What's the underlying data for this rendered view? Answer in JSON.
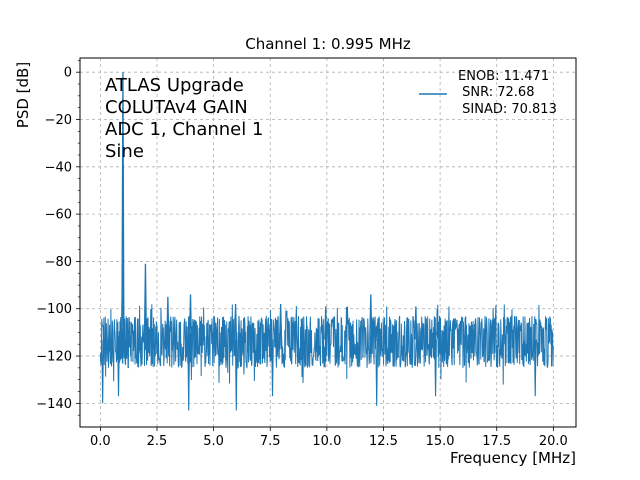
{
  "chart_data": {
    "type": "line",
    "title": "Channel 1: 0.995 MHz",
    "xlabel": "Frequency [MHz]",
    "ylabel": "PSD [dB]",
    "xlim": [
      -0.9,
      21.0
    ],
    "ylim": [
      -150,
      6
    ],
    "xticks": [
      0,
      2.5,
      5,
      7.5,
      10,
      12.5,
      15,
      17.5,
      20
    ],
    "xtick_labels": [
      "0.0",
      "2.5",
      "5.0",
      "7.5",
      "10.0",
      "12.5",
      "15.0",
      "17.5",
      "20.0"
    ],
    "yticks": [
      0,
      -20,
      -40,
      -60,
      -80,
      -100,
      -120,
      -140
    ],
    "ytick_labels": [
      "0",
      "−20",
      "−40",
      "−60",
      "−80",
      "−100",
      "−120",
      "−140"
    ],
    "grid": true,
    "grid_style": "dashed",
    "legend_position": "top-right",
    "color": "#1f77b4",
    "annotation_lines": [
      "ATLAS Upgrade",
      "COLUTAv4 GAIN",
      "ADC 1, Channel 1",
      "Sine"
    ],
    "legend_lines": [
      "ENOB: 11.471",
      " SNR: 72.68",
      " SINAD: 70.813"
    ],
    "noise_floor": {
      "band": [
        -125,
        -103
      ],
      "median": -113,
      "x_start": 0.0,
      "x_end": 20.0
    },
    "peaks": [
      {
        "x": 0.995,
        "y": 0
      },
      {
        "x": 0.98,
        "y": -79
      },
      {
        "x": 1.99,
        "y": -81
      },
      {
        "x": 2.98,
        "y": -95
      },
      {
        "x": 3.98,
        "y": -94
      },
      {
        "x": 5.97,
        "y": -98
      },
      {
        "x": 7.96,
        "y": -98
      },
      {
        "x": 9.95,
        "y": -99
      },
      {
        "x": 11.94,
        "y": -94
      },
      {
        "x": 13.93,
        "y": -99
      }
    ],
    "dips": [
      {
        "x": 0.1,
        "y": -140
      },
      {
        "x": 0.8,
        "y": -137
      },
      {
        "x": 3.9,
        "y": -143
      },
      {
        "x": 6.0,
        "y": -143
      },
      {
        "x": 7.6,
        "y": -137
      },
      {
        "x": 12.2,
        "y": -141
      },
      {
        "x": 14.8,
        "y": -137
      },
      {
        "x": 19.2,
        "y": -137
      }
    ]
  }
}
